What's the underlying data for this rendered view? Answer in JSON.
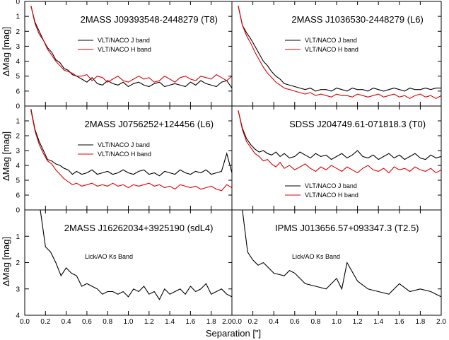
{
  "figure": {
    "xlabel": "Separation [\"]",
    "ylabel": "ΔMag [mag]"
  },
  "colors": {
    "j_band": "#000000",
    "h_band": "#e00000",
    "ks_band": "#000000"
  },
  "chart_data": [
    {
      "type": "line",
      "title": "2MASS J09393548-2448279 (T8)",
      "xlim": [
        0,
        2.0
      ],
      "ylim": [
        7,
        0
      ],
      "yticks": [
        0,
        1,
        2,
        3,
        4,
        5,
        6
      ],
      "ytick_labels": [
        "0",
        "1",
        "2",
        "3",
        "4",
        "5",
        "6"
      ],
      "legend": "top-right",
      "series": [
        {
          "name": "VLT/NACO J band",
          "color": "#000000",
          "x": [
            0.06,
            0.1,
            0.14,
            0.18,
            0.22,
            0.26,
            0.3,
            0.34,
            0.38,
            0.42,
            0.46,
            0.5,
            0.55,
            0.6,
            0.65,
            0.7,
            0.75,
            0.8,
            0.85,
            0.9,
            0.95,
            1.0,
            1.05,
            1.1,
            1.15,
            1.2,
            1.25,
            1.3,
            1.35,
            1.4,
            1.45,
            1.5,
            1.55,
            1.6,
            1.65,
            1.7,
            1.75,
            1.8,
            1.85,
            1.9,
            1.95,
            2.0
          ],
          "y": [
            0.3,
            1.4,
            2.0,
            2.6,
            3.1,
            3.4,
            3.9,
            4.1,
            4.5,
            4.6,
            4.9,
            5.0,
            5.2,
            5.4,
            5.1,
            5.5,
            5.6,
            5.3,
            5.5,
            5.6,
            5.4,
            5.7,
            5.5,
            5.4,
            5.6,
            5.7,
            5.5,
            5.4,
            5.7,
            5.6,
            5.5,
            5.6,
            5.7,
            5.4,
            5.6,
            5.3,
            5.5,
            5.6,
            5.7,
            5.4,
            5.3,
            5.8
          ]
        },
        {
          "name": "VLT/NACO H band",
          "color": "#e00000",
          "x": [
            0.06,
            0.1,
            0.14,
            0.18,
            0.22,
            0.26,
            0.3,
            0.34,
            0.38,
            0.42,
            0.46,
            0.5,
            0.55,
            0.6,
            0.65,
            0.7,
            0.75,
            0.8,
            0.85,
            0.9,
            0.95,
            1.0,
            1.05,
            1.1,
            1.15,
            1.2,
            1.25,
            1.3,
            1.35,
            1.4,
            1.45,
            1.5,
            1.55,
            1.6,
            1.65,
            1.7,
            1.75,
            1.8,
            1.85,
            1.9,
            1.95,
            2.0
          ],
          "y": [
            0.3,
            1.5,
            2.2,
            2.6,
            3.2,
            3.6,
            4.0,
            4.3,
            4.6,
            4.7,
            4.8,
            5.0,
            5.0,
            4.9,
            5.3,
            5.0,
            5.1,
            5.4,
            5.2,
            5.0,
            5.3,
            5.4,
            5.2,
            5.0,
            5.2,
            5.1,
            5.4,
            5.3,
            5.0,
            5.2,
            5.4,
            5.1,
            5.0,
            5.2,
            5.3,
            5.0,
            5.1,
            5.2,
            4.9,
            5.1,
            5.3,
            5.0
          ]
        }
      ]
    },
    {
      "type": "line",
      "title": "2MASS J1036530-2448279 (L6)",
      "xlim": [
        0,
        2.0
      ],
      "ylim": [
        7,
        0
      ],
      "yticks": [],
      "ytick_labels": [],
      "legend": "top-right",
      "series": [
        {
          "name": "VLT/NACO J band",
          "color": "#000000",
          "x": [
            0.06,
            0.1,
            0.14,
            0.18,
            0.22,
            0.26,
            0.3,
            0.34,
            0.38,
            0.42,
            0.46,
            0.5,
            0.55,
            0.6,
            0.65,
            0.7,
            0.75,
            0.8,
            0.85,
            0.9,
            0.95,
            1.0,
            1.05,
            1.1,
            1.15,
            1.2,
            1.25,
            1.3,
            1.35,
            1.4,
            1.45,
            1.5,
            1.55,
            1.6,
            1.65,
            1.7,
            1.75,
            1.8,
            1.85,
            1.9,
            1.95,
            2.0
          ],
          "y": [
            0.3,
            1.6,
            2.1,
            2.5,
            3.0,
            3.5,
            4.0,
            4.3,
            4.7,
            5.0,
            5.2,
            5.5,
            5.6,
            5.7,
            5.8,
            5.9,
            5.8,
            6.0,
            5.9,
            5.9,
            6.0,
            5.8,
            5.9,
            6.0,
            5.8,
            5.9,
            5.9,
            6.0,
            5.8,
            5.9,
            6.0,
            5.9,
            5.8,
            5.9,
            6.0,
            5.8,
            5.9,
            5.9,
            5.8,
            5.9,
            5.8,
            5.8
          ]
        },
        {
          "name": "VLT/NACO H band",
          "color": "#e00000",
          "x": [
            0.06,
            0.1,
            0.14,
            0.18,
            0.22,
            0.26,
            0.3,
            0.34,
            0.38,
            0.42,
            0.46,
            0.5,
            0.55,
            0.6,
            0.65,
            0.7,
            0.75,
            0.8,
            0.85,
            0.9,
            0.95,
            1.0,
            1.05,
            1.1,
            1.15,
            1.2,
            1.25,
            1.3,
            1.35,
            1.4,
            1.45,
            1.5,
            1.55,
            1.6,
            1.65,
            1.7,
            1.75,
            1.8,
            1.85,
            1.9,
            1.95,
            2.0
          ],
          "y": [
            0.3,
            1.6,
            2.3,
            2.8,
            3.4,
            3.9,
            4.4,
            4.8,
            5.1,
            5.4,
            5.6,
            5.8,
            5.9,
            6.0,
            6.1,
            6.2,
            6.1,
            6.3,
            6.2,
            6.3,
            6.4,
            6.2,
            6.3,
            6.3,
            6.4,
            6.2,
            6.3,
            6.4,
            6.3,
            6.2,
            6.4,
            6.3,
            6.2,
            6.4,
            6.3,
            6.5,
            6.3,
            6.2,
            6.4,
            6.3,
            6.5,
            6.3
          ]
        }
      ]
    },
    {
      "type": "line",
      "title": "2MASS J0756252+124456 (L6)",
      "xlim": [
        0,
        2.0
      ],
      "ylim": [
        7,
        0
      ],
      "yticks": [
        0,
        1,
        2,
        3,
        4,
        5,
        6
      ],
      "ytick_labels": [
        "0",
        "1",
        "2",
        "3",
        "4",
        "5",
        "6"
      ],
      "legend": "top-right",
      "series": [
        {
          "name": "VLT/NACO J band",
          "color": "#000000",
          "x": [
            0.06,
            0.1,
            0.14,
            0.18,
            0.22,
            0.26,
            0.3,
            0.34,
            0.38,
            0.42,
            0.46,
            0.5,
            0.55,
            0.6,
            0.65,
            0.7,
            0.75,
            0.8,
            0.85,
            0.9,
            0.95,
            1.0,
            1.05,
            1.1,
            1.15,
            1.2,
            1.25,
            1.3,
            1.35,
            1.4,
            1.45,
            1.5,
            1.55,
            1.6,
            1.65,
            1.7,
            1.75,
            1.8,
            1.85,
            1.9,
            1.95,
            2.0
          ],
          "y": [
            0.2,
            1.6,
            2.4,
            3.0,
            3.6,
            3.7,
            3.9,
            4.0,
            4.2,
            4.3,
            4.6,
            4.4,
            4.6,
            4.5,
            4.3,
            4.6,
            4.5,
            4.4,
            4.6,
            4.5,
            4.3,
            4.5,
            4.6,
            4.4,
            4.3,
            4.6,
            4.5,
            4.7,
            4.4,
            4.5,
            4.6,
            4.3,
            4.5,
            4.6,
            4.4,
            4.5,
            4.3,
            4.6,
            4.5,
            4.4,
            3.2,
            4.5
          ]
        },
        {
          "name": "VLT/NACO H band",
          "color": "#e00000",
          "x": [
            0.06,
            0.1,
            0.14,
            0.18,
            0.22,
            0.26,
            0.3,
            0.34,
            0.38,
            0.42,
            0.46,
            0.5,
            0.55,
            0.6,
            0.65,
            0.7,
            0.75,
            0.8,
            0.85,
            0.9,
            0.95,
            1.0,
            1.05,
            1.1,
            1.15,
            1.2,
            1.25,
            1.3,
            1.35,
            1.4,
            1.45,
            1.5,
            1.55,
            1.6,
            1.65,
            1.7,
            1.75,
            1.8,
            1.85,
            1.9,
            1.95,
            2.0
          ],
          "y": [
            0.3,
            1.7,
            2.6,
            3.2,
            3.7,
            3.9,
            4.3,
            4.6,
            4.9,
            5.1,
            5.3,
            5.2,
            5.4,
            5.3,
            5.2,
            5.4,
            5.3,
            5.4,
            5.2,
            5.4,
            5.3,
            5.5,
            5.3,
            5.4,
            5.3,
            5.2,
            5.4,
            5.3,
            5.5,
            5.4,
            5.6,
            5.3,
            5.4,
            5.5,
            5.4,
            5.6,
            5.5,
            5.4,
            5.6,
            5.7,
            5.3,
            5.5
          ]
        }
      ]
    },
    {
      "type": "line",
      "title": "SDSS J204749.61-071818.3 (T0)",
      "xlim": [
        0,
        2.0
      ],
      "ylim": [
        7,
        0
      ],
      "yticks": [],
      "ytick_labels": [],
      "legend": "bottom-right",
      "series": [
        {
          "name": "VLT/NACO J band",
          "color": "#000000",
          "x": [
            0.06,
            0.1,
            0.14,
            0.18,
            0.22,
            0.26,
            0.3,
            0.34,
            0.38,
            0.42,
            0.46,
            0.5,
            0.55,
            0.6,
            0.65,
            0.7,
            0.75,
            0.8,
            0.85,
            0.9,
            0.95,
            1.0,
            1.05,
            1.1,
            1.15,
            1.2,
            1.25,
            1.3,
            1.35,
            1.4,
            1.45,
            1.5,
            1.55,
            1.6,
            1.65,
            1.7,
            1.75,
            1.8,
            1.85,
            1.9,
            1.95,
            2.0
          ],
          "y": [
            0.3,
            1.5,
            2.2,
            2.6,
            2.9,
            3.1,
            3.0,
            3.2,
            3.3,
            3.1,
            3.4,
            3.2,
            3.5,
            3.4,
            3.1,
            3.3,
            3.5,
            3.2,
            3.4,
            3.3,
            3.6,
            3.4,
            3.2,
            3.5,
            3.3,
            3.0,
            3.4,
            3.5,
            3.3,
            3.6,
            3.4,
            3.2,
            3.5,
            3.3,
            3.6,
            3.4,
            3.2,
            3.5,
            3.6,
            3.3,
            3.5,
            3.4
          ]
        },
        {
          "name": "VLT/NACO H band",
          "color": "#e00000",
          "x": [
            0.06,
            0.1,
            0.14,
            0.18,
            0.22,
            0.26,
            0.3,
            0.34,
            0.38,
            0.42,
            0.46,
            0.5,
            0.55,
            0.6,
            0.65,
            0.7,
            0.75,
            0.8,
            0.85,
            0.9,
            0.95,
            1.0,
            1.05,
            1.1,
            1.15,
            1.2,
            1.25,
            1.3,
            1.35,
            1.4,
            1.45,
            1.5,
            1.55,
            1.6,
            1.65,
            1.7,
            1.75,
            1.8,
            1.85,
            1.9,
            1.95,
            2.0
          ],
          "y": [
            0.3,
            1.6,
            2.4,
            2.8,
            3.2,
            3.4,
            3.7,
            3.6,
            3.9,
            4.1,
            3.8,
            4.2,
            4.0,
            4.3,
            4.1,
            3.9,
            4.2,
            4.4,
            4.1,
            4.3,
            4.0,
            4.2,
            4.4,
            4.1,
            4.3,
            4.5,
            4.2,
            4.0,
            4.3,
            4.4,
            4.2,
            4.5,
            4.1,
            4.3,
            4.2,
            4.4,
            4.1,
            4.3,
            4.4,
            4.2,
            4.5,
            4.3
          ]
        }
      ]
    },
    {
      "type": "line",
      "title": "2MASS J16262034+3925190 (sdL4)",
      "xlim": [
        0,
        2.0
      ],
      "ylim": [
        4,
        0
      ],
      "yticks": [
        0,
        1,
        2,
        3,
        4
      ],
      "ytick_labels": [
        "0",
        "1",
        "2",
        "3",
        "4"
      ],
      "xticks": [
        0,
        0.2,
        0.4,
        0.6,
        0.8,
        1.0,
        1.2,
        1.4,
        1.6,
        1.8,
        2.0
      ],
      "xtick_labels": [
        "0.0",
        "0.2",
        "0.4",
        "0.6",
        "0.8",
        "1.0",
        "1.2",
        "1.4",
        "1.6",
        "1.8",
        "2.0"
      ],
      "legend": "top-left",
      "series": [
        {
          "name": "Lick/AO Ks Band",
          "color": "#000000",
          "x": [
            0.15,
            0.2,
            0.25,
            0.3,
            0.35,
            0.4,
            0.45,
            0.5,
            0.55,
            0.6,
            0.65,
            0.7,
            0.75,
            0.8,
            0.85,
            0.9,
            0.95,
            1.0,
            1.05,
            1.1,
            1.15,
            1.2,
            1.25,
            1.3,
            1.35,
            1.4,
            1.45,
            1.5,
            1.55,
            1.6,
            1.65,
            1.7,
            1.75,
            1.8,
            1.85,
            1.9,
            1.95,
            2.0
          ],
          "y": [
            0.0,
            1.4,
            1.6,
            2.0,
            2.5,
            2.2,
            2.4,
            2.5,
            2.9,
            2.8,
            2.9,
            3.0,
            3.2,
            3.1,
            3.1,
            3.2,
            3.1,
            3.3,
            3.0,
            3.1,
            2.9,
            3.2,
            3.1,
            3.4,
            3.0,
            3.2,
            3.1,
            3.0,
            3.2,
            2.9,
            3.1,
            3.0,
            2.8,
            3.2,
            3.1,
            3.0,
            3.2,
            3.3
          ]
        }
      ]
    },
    {
      "type": "line",
      "title": "IPMS J013656.57+093347.3 (T2.5)",
      "xlim": [
        0,
        2.0
      ],
      "ylim": [
        4,
        0
      ],
      "yticks": [],
      "ytick_labels": [],
      "xticks": [
        0,
        0.2,
        0.4,
        0.6,
        0.8,
        1.0,
        1.2,
        1.4,
        1.6,
        1.8,
        2.0
      ],
      "xtick_labels": [
        "0.0",
        "0.2",
        "0.4",
        "0.6",
        "0.8",
        "1.0",
        "1.2",
        "1.4",
        "1.6",
        "1.8",
        "2.0"
      ],
      "legend": "top-left",
      "series": [
        {
          "name": "Lick/AO Ks Band",
          "color": "#000000",
          "x": [
            0.1,
            0.15,
            0.2,
            0.25,
            0.3,
            0.4,
            0.5,
            0.55,
            0.6,
            0.7,
            0.8,
            0.9,
            1.0,
            1.05,
            1.1,
            1.2,
            1.3,
            1.4,
            1.5,
            1.6,
            1.7,
            1.8,
            1.9,
            1.95,
            2.0
          ],
          "y": [
            0.0,
            1.6,
            1.9,
            2.1,
            2.0,
            2.4,
            2.5,
            2.3,
            2.4,
            2.8,
            2.9,
            3.0,
            2.6,
            3.0,
            2.0,
            2.7,
            3.0,
            3.1,
            3.2,
            2.8,
            3.1,
            3.0,
            3.1,
            3.2,
            3.3
          ]
        }
      ]
    }
  ]
}
